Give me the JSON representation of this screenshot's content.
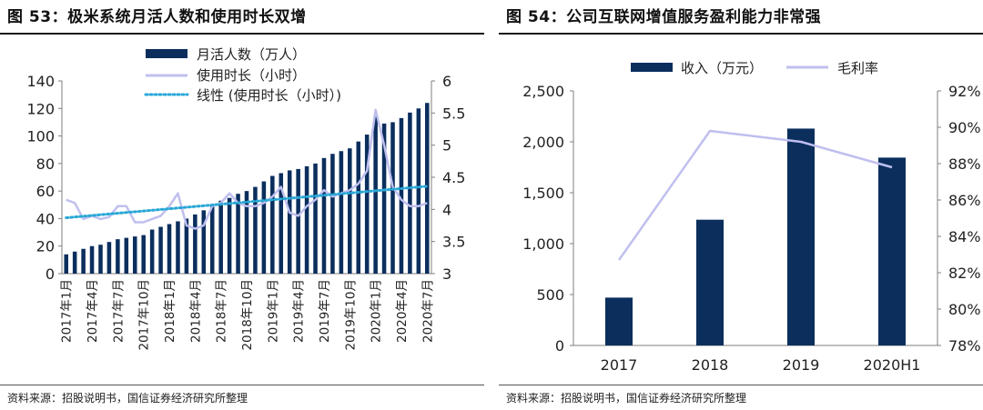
{
  "colors": {
    "navy": "#0b2e5d",
    "lavender": "#bfbfef",
    "cyan": "#2aa8d6",
    "axis": "#7f7f7f"
  },
  "panel1": {
    "title": "图 53：极米系统月活人数和使用时长双增",
    "source": "资料来源：招股说明书，国信证券经济研究所整理"
  },
  "panel2": {
    "title": "图 54：公司互联网增值服务盈利能力非常强",
    "source": "资料来源：招股说明书，国信证券经济研究所整理"
  },
  "chart_data": [
    {
      "type": "bar",
      "title": "极米系统月活人数和使用时长双增",
      "x": [
        "2017年1月",
        "2017年2月",
        "2017年3月",
        "2017年4月",
        "2017年5月",
        "2017年6月",
        "2017年7月",
        "2017年8月",
        "2017年9月",
        "2017年10月",
        "2017年11月",
        "2017年12月",
        "2018年1月",
        "2018年2月",
        "2018年3月",
        "2018年4月",
        "2018年5月",
        "2018年6月",
        "2018年7月",
        "2018年8月",
        "2018年9月",
        "2018年10月",
        "2018年11月",
        "2018年12月",
        "2019年1月",
        "2019年2月",
        "2019年3月",
        "2019年4月",
        "2019年5月",
        "2019年6月",
        "2019年7月",
        "2019年8月",
        "2019年9月",
        "2019年10月",
        "2019年11月",
        "2019年12月",
        "2020年1月",
        "2020年2月",
        "2020年3月",
        "2020年4月",
        "2020年5月",
        "2020年6月",
        "2020年7月"
      ],
      "tick_labels": [
        "2017年1月",
        "2017年4月",
        "2017年7月",
        "2017年10月",
        "2018年1月",
        "2018年4月",
        "2018年7月",
        "2018年10月",
        "2019年1月",
        "2019年4月",
        "2019年7月",
        "2019年10月",
        "2020年1月",
        "2020年4月",
        "2020年7月"
      ],
      "tick_indices": [
        0,
        3,
        6,
        9,
        12,
        15,
        18,
        21,
        24,
        27,
        30,
        33,
        36,
        39,
        42
      ],
      "series": [
        {
          "name": "月活人数（万人）",
          "kind": "bar",
          "axis": "left",
          "values": [
            14,
            16,
            18,
            20,
            21,
            23,
            25,
            26,
            27,
            28,
            32,
            34,
            36,
            38,
            40,
            43,
            46,
            50,
            53,
            55,
            58,
            60,
            63,
            67,
            71,
            73,
            75,
            76,
            78,
            80,
            84,
            87,
            89,
            91,
            96,
            101,
            114,
            109,
            110,
            113,
            117,
            120,
            124
          ]
        },
        {
          "name": "使用时长（小时）",
          "kind": "line",
          "axis": "right",
          "values": [
            4.15,
            4.1,
            3.85,
            3.9,
            3.85,
            3.88,
            4.05,
            4.05,
            3.8,
            3.8,
            3.85,
            3.9,
            4.05,
            4.25,
            3.75,
            3.7,
            3.75,
            4.05,
            4.1,
            4.25,
            4.1,
            4.05,
            4.05,
            4.1,
            4.2,
            4.35,
            3.95,
            3.9,
            4.05,
            4.15,
            4.3,
            4.2,
            4.25,
            4.3,
            4.4,
            4.6,
            5.55,
            5.0,
            4.35,
            4.15,
            4.05,
            4.05,
            4.1
          ]
        },
        {
          "name": "线性 (使用时长（小时）)",
          "kind": "trend",
          "axis": "right",
          "from": 3.87,
          "to": 4.36
        }
      ],
      "left_axis": {
        "min": 0,
        "max": 140,
        "ticks": [
          0,
          20,
          40,
          60,
          80,
          100,
          120,
          140
        ]
      },
      "right_axis": {
        "min": 3,
        "max": 6,
        "ticks": [
          "3",
          "3.5",
          "4",
          "4.5",
          "5",
          "5.5",
          "6"
        ]
      },
      "legend": "top-center"
    },
    {
      "type": "bar",
      "title": "公司互联网增值服务盈利能力非常强",
      "categories": [
        "2017",
        "2018",
        "2019",
        "2020H1"
      ],
      "series": [
        {
          "name": "收入（万元）",
          "kind": "bar",
          "axis": "left",
          "values": [
            470,
            1235,
            2130,
            1845
          ]
        },
        {
          "name": "毛利率",
          "kind": "line",
          "axis": "right",
          "values": [
            82.7,
            89.8,
            89.2,
            87.8
          ]
        }
      ],
      "left_axis": {
        "min": 0,
        "max": 2500,
        "ticks": [
          "0",
          "500",
          "1,000",
          "1,500",
          "2,000",
          "2,500"
        ]
      },
      "right_axis": {
        "min": 78,
        "max": 92,
        "ticks": [
          "78%",
          "80%",
          "82%",
          "84%",
          "86%",
          "88%",
          "90%",
          "92%"
        ]
      },
      "legend": "top-center"
    }
  ]
}
